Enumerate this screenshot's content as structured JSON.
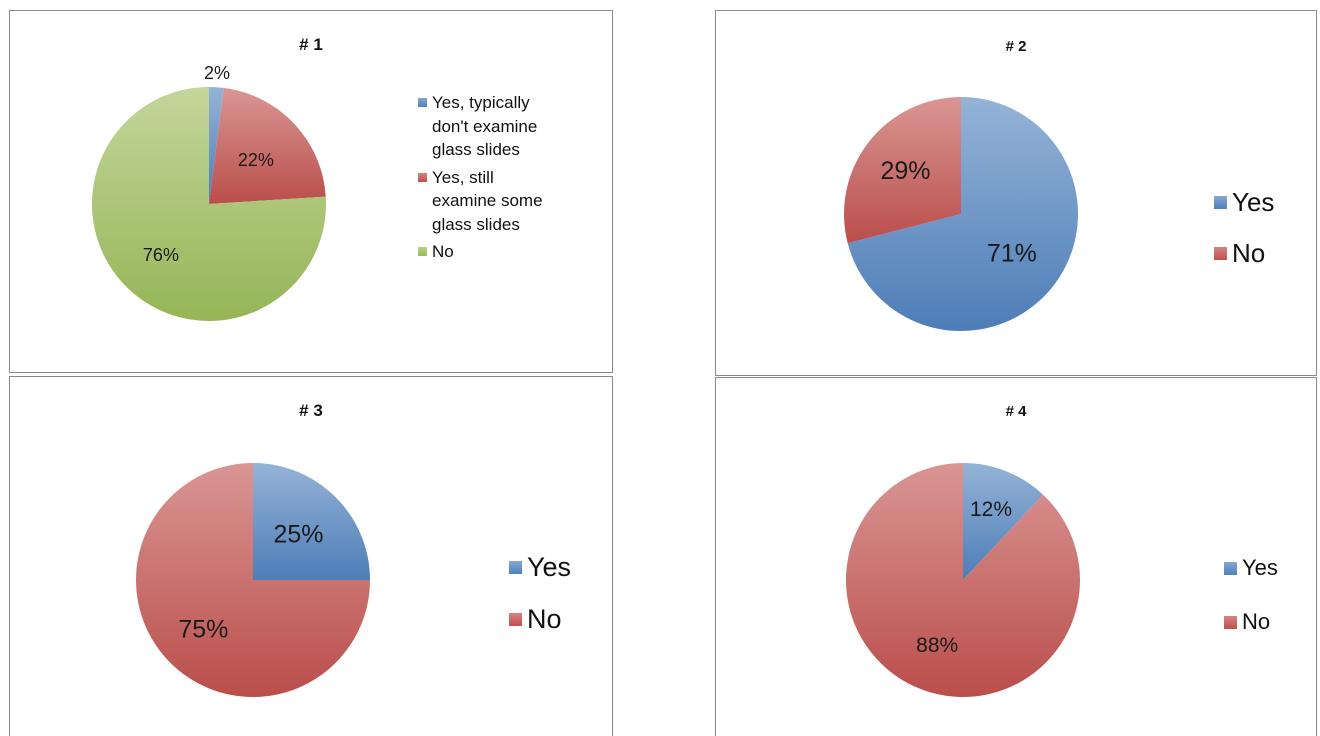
{
  "chart_data": [
    {
      "type": "pie",
      "title": "# 1",
      "categories": [
        "Yes, typically don't examine glass slides",
        "Yes, still examine some glass slides",
        "No"
      ],
      "values": [
        2,
        22,
        76
      ],
      "labels": [
        "2%",
        "22%",
        "76%"
      ],
      "colors": [
        "#4f81bd",
        "#c0504d",
        "#9bbb59"
      ],
      "legend": [
        {
          "lines": [
            "Yes, typically",
            "don't examine",
            "glass slides"
          ],
          "color": "#4f81bd"
        },
        {
          "lines": [
            "Yes, still",
            "examine some",
            "glass slides"
          ],
          "color": "#c0504d"
        },
        {
          "lines": [
            "No"
          ],
          "color": "#9bbb59"
        }
      ],
      "legend_position": "right"
    },
    {
      "type": "pie",
      "title": "# 2",
      "categories": [
        "Yes",
        "No"
      ],
      "values": [
        71,
        29
      ],
      "labels": [
        "71%",
        "29%"
      ],
      "colors": [
        "#4f81bd",
        "#c0504d"
      ],
      "legend": [
        {
          "lines": [
            "Yes"
          ],
          "color": "#4f81bd"
        },
        {
          "lines": [
            "No"
          ],
          "color": "#c0504d"
        }
      ],
      "legend_position": "right"
    },
    {
      "type": "pie",
      "title": "# 3",
      "categories": [
        "Yes",
        "No"
      ],
      "values": [
        25,
        75
      ],
      "labels": [
        "25%",
        "75%"
      ],
      "colors": [
        "#4f81bd",
        "#c0504d"
      ],
      "legend": [
        {
          "lines": [
            "Yes"
          ],
          "color": "#4f81bd"
        },
        {
          "lines": [
            "No"
          ],
          "color": "#c0504d"
        }
      ],
      "legend_position": "right"
    },
    {
      "type": "pie",
      "title": "# 4",
      "categories": [
        "Yes",
        "No"
      ],
      "values": [
        12,
        88
      ],
      "labels": [
        "12%",
        "88%"
      ],
      "colors": [
        "#4f81bd",
        "#c0504d"
      ],
      "legend": [
        {
          "lines": [
            "Yes"
          ],
          "color": "#4f81bd"
        },
        {
          "lines": [
            "No"
          ],
          "color": "#c0504d"
        }
      ],
      "legend_position": "right"
    }
  ]
}
